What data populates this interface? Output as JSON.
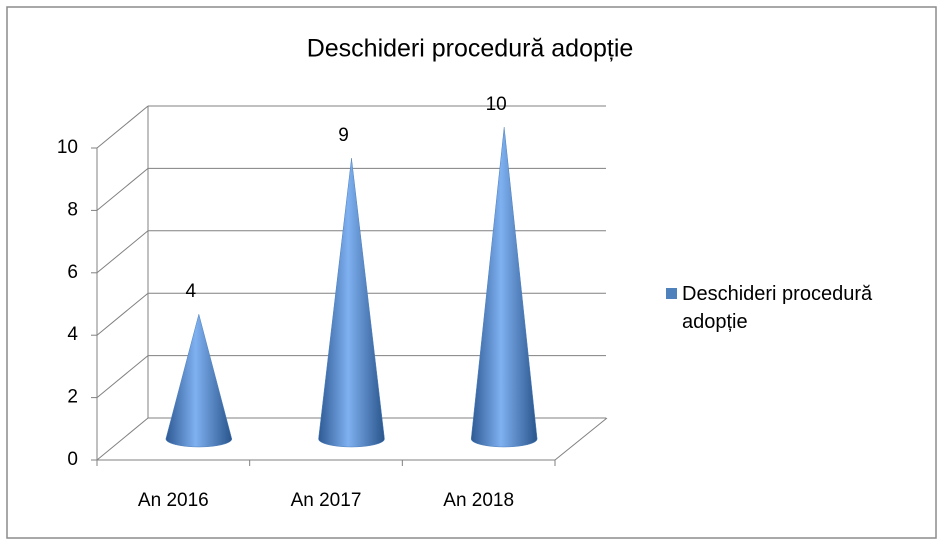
{
  "chart_data": {
    "type": "cone",
    "title": "Deschideri procedură adopție",
    "categories": [
      "An 2016",
      "An 2017",
      "An 2018"
    ],
    "series": [
      {
        "name": "Deschideri procedură adopție",
        "color": "#4f81bd",
        "values": [
          4,
          9,
          10
        ]
      }
    ],
    "ylim": [
      0,
      10
    ],
    "yticks": [
      0,
      2,
      4,
      6,
      8,
      10
    ],
    "grid": true,
    "legend": "right"
  }
}
